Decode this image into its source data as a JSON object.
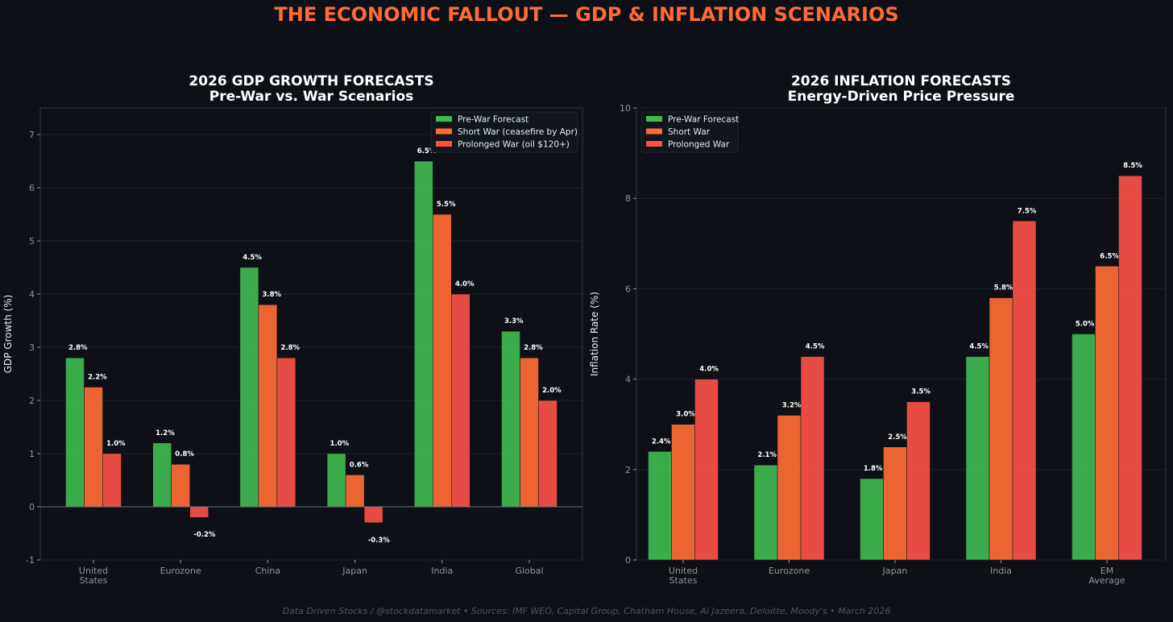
{
  "title": "THE ECONOMIC FALLOUT — GDP & INFLATION SCENARIOS",
  "footer": "Data Driven Stocks / @stockdatamarket  •  Sources: IMF WEO, Capital Group, Chatham House, Al Jazeera, Deloitte, Moody's  •  March 2026",
  "colors": {
    "pre": "#3fb950",
    "short": "#ff6b35",
    "prolonged": "#f85149",
    "background": "#0d1117"
  },
  "chart_data": [
    {
      "type": "bar",
      "title": "2026 GDP GROWTH FORECASTS",
      "subtitle": "Pre-War vs. War Scenarios",
      "xlabel": "",
      "ylabel": "GDP Growth (%)",
      "ylim": [
        -1,
        7.5
      ],
      "yticks": [
        -1,
        0,
        1,
        2,
        3,
        4,
        5,
        6,
        7
      ],
      "grid": true,
      "legend_position": "top-right",
      "categories": [
        "United\nStates",
        "Eurozone",
        "China",
        "Japan",
        "India",
        "Global"
      ],
      "series": [
        {
          "name": "Pre-War Forecast",
          "color": "#3fb950",
          "values": [
            2.8,
            1.2,
            4.5,
            1.0,
            6.5,
            3.3
          ]
        },
        {
          "name": "Short War (ceasefire by Apr)",
          "color": "#ff6b35",
          "values": [
            2.25,
            0.8,
            3.8,
            0.6,
            5.5,
            2.8
          ]
        },
        {
          "name": "Prolonged War (oil $120+)",
          "color": "#f85149",
          "values": [
            1.0,
            -0.2,
            2.8,
            -0.3,
            4.0,
            2.0
          ]
        }
      ],
      "data_labels": [
        [
          "2.8%",
          "1.2%",
          "4.5%",
          "1.0%",
          "6.5%",
          "3.3%"
        ],
        [
          "2.2%",
          "0.8%",
          "3.8%",
          "0.6%",
          "5.5%",
          "2.8%"
        ],
        [
          "1.0%",
          "-0.2%",
          "2.8%",
          "-0.3%",
          "4.0%",
          "2.0%"
        ]
      ]
    },
    {
      "type": "bar",
      "title": "2026 INFLATION FORECASTS",
      "subtitle": "Energy-Driven Price Pressure",
      "xlabel": "",
      "ylabel": "Inflation Rate (%)",
      "ylim": [
        0,
        10
      ],
      "yticks": [
        0,
        2,
        4,
        6,
        8,
        10
      ],
      "grid": true,
      "legend_position": "top-left",
      "categories": [
        "United\nStates",
        "Eurozone",
        "Japan",
        "India",
        "EM\nAverage"
      ],
      "series": [
        {
          "name": "Pre-War Forecast",
          "color": "#3fb950",
          "values": [
            2.4,
            2.1,
            1.8,
            4.5,
            5.0
          ]
        },
        {
          "name": "Short War",
          "color": "#ff6b35",
          "values": [
            3.0,
            3.2,
            2.5,
            5.8,
            6.5
          ]
        },
        {
          "name": "Prolonged War",
          "color": "#f85149",
          "values": [
            4.0,
            4.5,
            3.5,
            7.5,
            8.5
          ]
        }
      ],
      "data_labels": [
        [
          "2.4%",
          "2.1%",
          "1.8%",
          "4.5%",
          "5.0%"
        ],
        [
          "3.0%",
          "3.2%",
          "2.5%",
          "5.8%",
          "6.5%"
        ],
        [
          "4.0%",
          "4.5%",
          "3.5%",
          "7.5%",
          "8.5%"
        ]
      ]
    }
  ]
}
